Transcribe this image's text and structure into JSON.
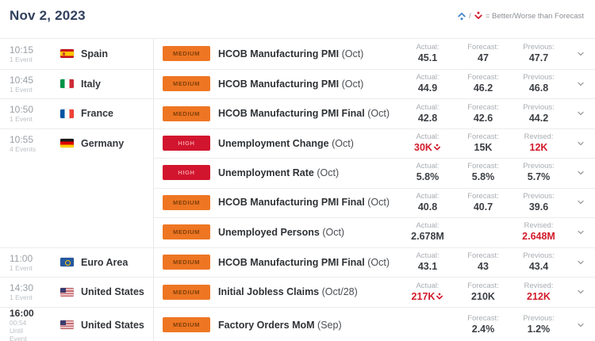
{
  "header": {
    "date": "Nov 2, 2023",
    "legend": {
      "separator": "/",
      "text": "= Better/Worse than Forecast"
    }
  },
  "colors": {
    "better_blue": "#4285c8",
    "worse_red": "#d11b2a",
    "medium_badge_bg": "#ee7623",
    "high_badge_bg": "#d2152e",
    "header_navy": "#31405e"
  },
  "table": {
    "rows": [
      {
        "time": "10:15",
        "time_sub": [
          "1 Event"
        ],
        "time_bold": false,
        "divider": "full",
        "flag": "spain",
        "country": "Spain",
        "importance": "MEDIUM",
        "event": "HCOB Manufacturing PMI",
        "event_period": "(Oct)",
        "actual": {
          "label": "Actual:",
          "value": "45.1",
          "red": false,
          "worse_icon": false
        },
        "forecast": {
          "label": "Forecast:",
          "value": "47",
          "red": false,
          "worse_icon": false
        },
        "previous": {
          "label": "Previous:",
          "value": "47.7",
          "red": false,
          "worse_icon": false
        }
      },
      {
        "time": "10:45",
        "time_sub": [
          "1 Event"
        ],
        "time_bold": false,
        "divider": "full",
        "flag": "italy",
        "country": "Italy",
        "importance": "MEDIUM",
        "event": "HCOB Manufacturing PMI",
        "event_period": "(Oct)",
        "actual": {
          "label": "Actual:",
          "value": "44.9",
          "red": false,
          "worse_icon": false
        },
        "forecast": {
          "label": "Forecast:",
          "value": "46.2",
          "red": false,
          "worse_icon": false
        },
        "previous": {
          "label": "Previous:",
          "value": "46.8",
          "red": false,
          "worse_icon": false
        }
      },
      {
        "time": "10:50",
        "time_sub": [
          "1 Event"
        ],
        "time_bold": false,
        "divider": "full",
        "flag": "france",
        "country": "France",
        "importance": "MEDIUM",
        "event": "HCOB Manufacturing PMI Final",
        "event_period": "(Oct)",
        "actual": {
          "label": "Actual:",
          "value": "42.8",
          "red": false,
          "worse_icon": false
        },
        "forecast": {
          "label": "Forecast:",
          "value": "42.6",
          "red": false,
          "worse_icon": false
        },
        "previous": {
          "label": "Previous:",
          "value": "44.2",
          "red": false,
          "worse_icon": false
        }
      },
      {
        "time": "10:55",
        "time_sub": [
          "4 Events"
        ],
        "time_bold": false,
        "divider": "full",
        "flag": "germany",
        "country": "Germany",
        "importance": "HIGH",
        "event": "Unemployment Change",
        "event_period": "(Oct)",
        "actual": {
          "label": "Actual:",
          "value": "30K",
          "red": true,
          "worse_icon": true
        },
        "forecast": {
          "label": "Forecast:",
          "value": "15K",
          "red": false,
          "worse_icon": false
        },
        "previous": {
          "label": "Revised:",
          "value": "12K",
          "red": true,
          "worse_icon": false
        }
      },
      {
        "time": "",
        "time_sub": [],
        "time_bold": false,
        "divider": "right",
        "flag": null,
        "country": "",
        "importance": "HIGH",
        "event": "Unemployment Rate",
        "event_period": "(Oct)",
        "actual": {
          "label": "Actual:",
          "value": "5.8%",
          "red": false,
          "worse_icon": false
        },
        "forecast": {
          "label": "Forecast:",
          "value": "5.8%",
          "red": false,
          "worse_icon": false
        },
        "previous": {
          "label": "Previous:",
          "value": "5.7%",
          "red": false,
          "worse_icon": false
        }
      },
      {
        "time": "",
        "time_sub": [],
        "time_bold": false,
        "divider": "right",
        "flag": null,
        "country": "",
        "importance": "MEDIUM",
        "event": "HCOB Manufacturing PMI Final",
        "event_period": "(Oct)",
        "actual": {
          "label": "Actual:",
          "value": "40.8",
          "red": false,
          "worse_icon": false
        },
        "forecast": {
          "label": "Forecast:",
          "value": "40.7",
          "red": false,
          "worse_icon": false
        },
        "previous": {
          "label": "Previous:",
          "value": "39.6",
          "red": false,
          "worse_icon": false
        }
      },
      {
        "time": "",
        "time_sub": [],
        "time_bold": false,
        "divider": "right",
        "flag": null,
        "country": "",
        "importance": "MEDIUM",
        "event": "Unemployed Persons",
        "event_period": "(Oct)",
        "actual": {
          "label": "Actual:",
          "value": "2.678M",
          "red": false,
          "worse_icon": false
        },
        "forecast": null,
        "previous": {
          "label": "Revised:",
          "value": "2.648M",
          "red": true,
          "worse_icon": false
        }
      },
      {
        "time": "11:00",
        "time_sub": [
          "1 Event"
        ],
        "time_bold": false,
        "divider": "full",
        "flag": "eu",
        "country": "Euro Area",
        "importance": "MEDIUM",
        "event": "HCOB Manufacturing PMI Final",
        "event_period": "(Oct)",
        "actual": {
          "label": "Actual:",
          "value": "43.1",
          "red": false,
          "worse_icon": false
        },
        "forecast": {
          "label": "Forecast:",
          "value": "43",
          "red": false,
          "worse_icon": false
        },
        "previous": {
          "label": "Previous:",
          "value": "43.4",
          "red": false,
          "worse_icon": false
        }
      },
      {
        "time": "14:30",
        "time_sub": [
          "1 Event"
        ],
        "time_bold": false,
        "divider": "full",
        "flag": "us",
        "country": "United States",
        "importance": "MEDIUM",
        "event": "Initial Jobless Claims",
        "event_period": "(Oct/28)",
        "actual": {
          "label": "Actual:",
          "value": "217K",
          "red": true,
          "worse_icon": true
        },
        "forecast": {
          "label": "Forecast:",
          "value": "210K",
          "red": false,
          "worse_icon": false
        },
        "previous": {
          "label": "Revised:",
          "value": "212K",
          "red": true,
          "worse_icon": false
        }
      },
      {
        "time": "16:00",
        "time_sub": [
          "00:54",
          "Until",
          "Event"
        ],
        "time_bold": true,
        "divider": "full",
        "flag": "us",
        "country": "United States",
        "importance": "MEDIUM",
        "event": "Factory Orders MoM",
        "event_period": "(Sep)",
        "actual": null,
        "forecast": {
          "label": "Forecast:",
          "value": "2.4%",
          "red": false,
          "worse_icon": false
        },
        "previous": {
          "label": "Previous:",
          "value": "1.2%",
          "red": false,
          "worse_icon": false
        }
      }
    ]
  }
}
